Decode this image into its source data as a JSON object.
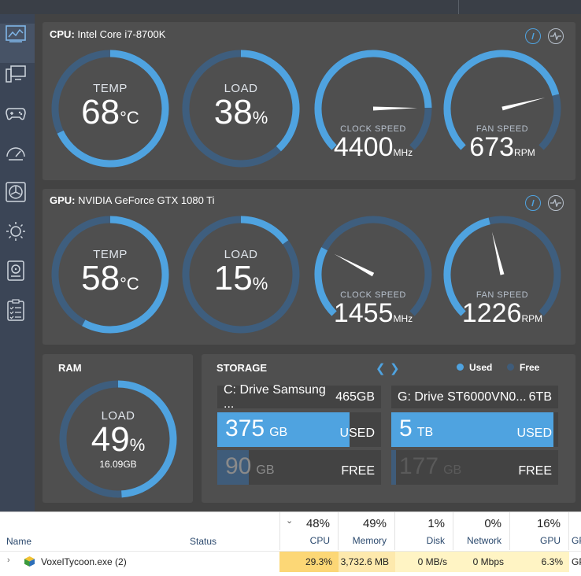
{
  "colors": {
    "accent": "#4fa3e0",
    "track": "#3e5e7e",
    "used": "#4fa3e0",
    "free": "#3f5c7a",
    "heat_high": "#fcd776",
    "heat_mid": "#fde9ad",
    "heat_low": "#fff4c4"
  },
  "sidebar": {
    "items": [
      {
        "name": "dashboard-icon",
        "active": true
      },
      {
        "name": "system-info-icon"
      },
      {
        "name": "gamepad-icon"
      },
      {
        "name": "speedometer-icon"
      },
      {
        "name": "fan-icon"
      },
      {
        "name": "brightness-icon"
      },
      {
        "name": "storage-drive-icon"
      },
      {
        "name": "clipboard-checklist-icon"
      }
    ]
  },
  "cpu": {
    "label": "CPU:",
    "name": "Intel Core i7-8700K",
    "temp": {
      "label": "TEMP",
      "value": "68",
      "unit": "°C",
      "fraction": 0.68
    },
    "load": {
      "label": "LOAD",
      "value": "38",
      "unit": "%",
      "fraction": 0.38
    },
    "clock": {
      "label": "CLOCK SPEED",
      "value": "4400",
      "unit": "MHz",
      "fraction": 0.83
    },
    "fan": {
      "label": "FAN SPEED",
      "value": "673",
      "unit": "RPM",
      "fraction": 0.78
    }
  },
  "gpu": {
    "label": "GPU:",
    "name": "NVIDIA GeForce GTX 1080 Ti",
    "temp": {
      "label": "TEMP",
      "value": "58",
      "unit": "°C",
      "fraction": 0.58
    },
    "load": {
      "label": "LOAD",
      "value": "15",
      "unit": "%",
      "fraction": 0.15
    },
    "clock": {
      "label": "CLOCK SPEED",
      "value": "1455",
      "unit": "MHz",
      "fraction": 0.27
    },
    "fan": {
      "label": "FAN SPEED",
      "value": "1226",
      "unit": "RPM",
      "fraction": 0.45
    }
  },
  "ram": {
    "title": "RAM",
    "label": "LOAD",
    "value": "49",
    "unit": "%",
    "sub": "16.09GB",
    "fraction": 0.49
  },
  "storage": {
    "title": "STORAGE",
    "legend_used": "Used",
    "legend_free": "Free",
    "drives": [
      {
        "name": "C: Drive Samsung ...",
        "size": "465GB",
        "used": "375",
        "used_unit": "GB",
        "used_label": "USED",
        "free": "90",
        "free_unit": "GB",
        "free_label": "FREE",
        "used_fraction": 0.81,
        "free_fraction": 0.19
      },
      {
        "name": "G: Drive ST6000VN0...",
        "size": "6TB",
        "used": "5",
        "used_unit": "TB",
        "used_label": "USED",
        "free": "177",
        "free_unit": "GB",
        "free_label": "FREE",
        "used_fraction": 0.97,
        "free_fraction": 0.03
      }
    ]
  },
  "taskmanager": {
    "name_header": "Name",
    "status_header": "Status",
    "columns": [
      {
        "pct": "48%",
        "label": "CPU"
      },
      {
        "pct": "49%",
        "label": "Memory"
      },
      {
        "pct": "1%",
        "label": "Disk"
      },
      {
        "pct": "0%",
        "label": "Network"
      },
      {
        "pct": "16%",
        "label": "GPU"
      },
      {
        "pct": "",
        "label": "GP"
      }
    ],
    "row": {
      "name": "VoxelTycoon.exe (2)",
      "cpu": "29.3%",
      "memory": "3,732.6 MB",
      "disk": "0 MB/s",
      "network": "0 Mbps",
      "gpu": "6.3%",
      "gpu_engine": "GP"
    }
  }
}
